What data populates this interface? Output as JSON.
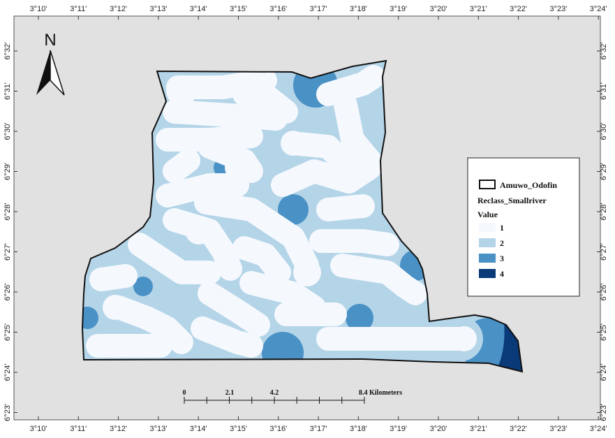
{
  "map": {
    "top_ticks": [
      "3°10'",
      "3°11'",
      "3°12'",
      "3°13'",
      "3°14'",
      "3°15'",
      "3°16'",
      "3°17'",
      "3°18'",
      "3°19'",
      "3°20'",
      "3°21'",
      "3°22'",
      "3°23'",
      "3°24'"
    ],
    "bottom_ticks": [
      "3°10'",
      "3°11'",
      "3°12'",
      "3°13'",
      "3°14'",
      "3°15'",
      "3°16'",
      "3°17'",
      "3°18'",
      "3°19'",
      "3°20'",
      "3°21'",
      "3°22'",
      "3°23'",
      "3°24'"
    ],
    "left_ticks": [
      "6°32'",
      "6°31'",
      "6°30'",
      "6°29'",
      "6°28'",
      "6°27'",
      "6°26'",
      "6°25'",
      "6°24'",
      "6°23'"
    ],
    "right_ticks": [
      "6°32'",
      "6°31'",
      "6°30'",
      "6°29'",
      "6°28'",
      "6°27'",
      "6°26'",
      "6°25'",
      "6°24'",
      "6°23'"
    ],
    "north_label": "N"
  },
  "legend": {
    "boundary_label": "Amuwo_Odofin",
    "layer_title": "Reclass_Smallriver",
    "value_heading": "Value",
    "classes": [
      {
        "label": "1",
        "color": "#f5f9fd"
      },
      {
        "label": "2",
        "color": "#b4d4e8"
      },
      {
        "label": "3",
        "color": "#4a91c6"
      },
      {
        "label": "4",
        "color": "#0a3a78"
      }
    ]
  },
  "scale_bar": {
    "labels": [
      "0",
      "2.1",
      "4.2",
      "8.4 Kilometers"
    ]
  },
  "colors": {
    "frame_bg": "#e1e1e1",
    "class1": "#f5f9fd",
    "class2": "#b4d4e8",
    "class3": "#4a91c6",
    "class4": "#0a3a78"
  }
}
